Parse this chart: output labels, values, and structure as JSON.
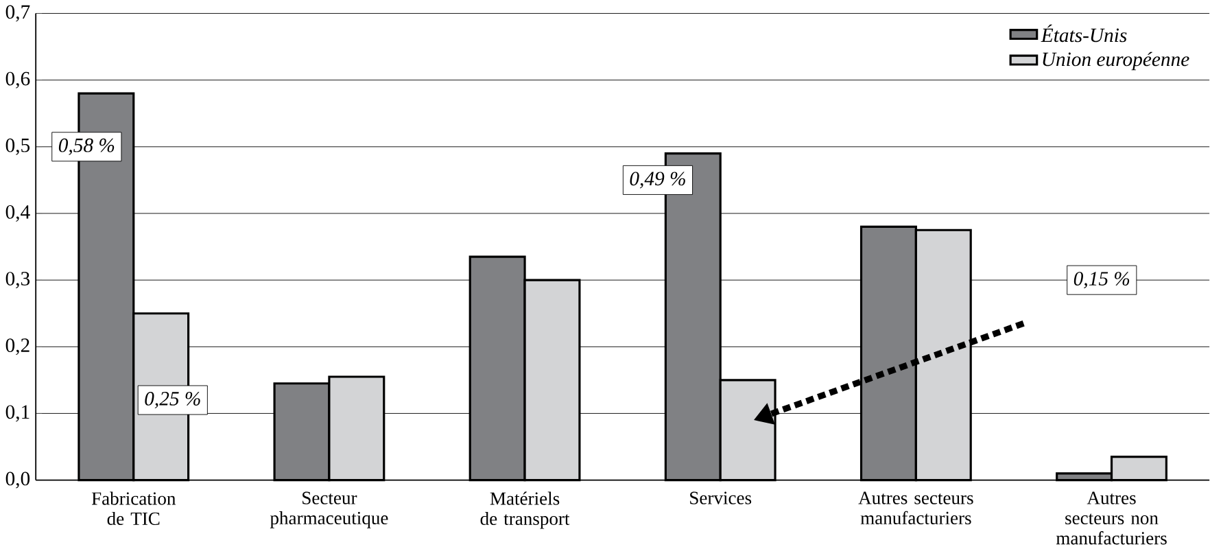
{
  "chart_data": {
    "type": "bar",
    "categories": [
      "Fabrication de TIC",
      "Secteur pharmaceutique",
      "Matériels de transport",
      "Services",
      "Autres secteurs manufacturiers",
      "Autres secteurs non manufacturiers"
    ],
    "series": [
      {
        "name": "États-Unis",
        "color": "#808184",
        "values": [
          0.58,
          0.145,
          0.335,
          0.49,
          0.38,
          0.01
        ]
      },
      {
        "name": "Union européenne",
        "color": "#d3d4d6",
        "values": [
          0.25,
          0.155,
          0.3,
          0.15,
          0.375,
          0.035
        ]
      }
    ],
    "ylim": [
      0,
      0.7
    ],
    "yticks": [
      {
        "value": 0,
        "label": "0,0"
      },
      {
        "value": 0.1,
        "label": "0,1"
      },
      {
        "value": 0.2,
        "label": "0,2"
      },
      {
        "value": 0.3,
        "label": "0,3"
      },
      {
        "value": 0.4,
        "label": "0,4"
      },
      {
        "value": 0.5,
        "label": "0,5"
      },
      {
        "value": 0.6,
        "label": "0,6"
      },
      {
        "value": 0.7,
        "label": "0,7"
      }
    ],
    "grid": "y",
    "legend": "top right",
    "annotations": [
      {
        "text": "0,58 %",
        "x": "Fabrication de TIC",
        "y": 0.58
      },
      "0,25 %",
      {
        "text": "0,49 %",
        "x": "Services",
        "y": 0.49
      },
      "0,15 %"
    ]
  }
}
